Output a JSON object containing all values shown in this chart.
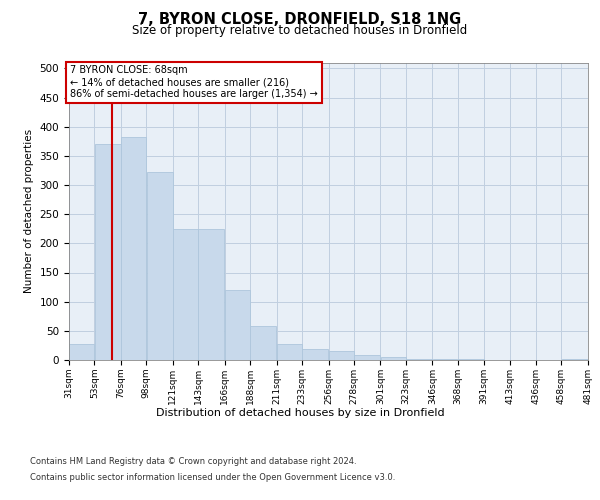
{
  "title": "7, BYRON CLOSE, DRONFIELD, S18 1NG",
  "subtitle": "Size of property relative to detached houses in Dronfield",
  "xlabel": "Distribution of detached houses by size in Dronfield",
  "ylabel": "Number of detached properties",
  "footer_line1": "Contains HM Land Registry data © Crown copyright and database right 2024.",
  "footer_line2": "Contains public sector information licensed under the Open Government Licence v3.0.",
  "bar_color": "#c8d9eb",
  "bar_edge_color": "#aec6dc",
  "grid_color": "#c0cfe0",
  "background_color": "#e8eff7",
  "vline_color": "#cc0000",
  "property_size": 68,
  "annotation_text": "7 BYRON CLOSE: 68sqm\n← 14% of detached houses are smaller (216)\n86% of semi-detached houses are larger (1,354) →",
  "bin_edges": [
    31,
    53,
    76,
    98,
    121,
    143,
    166,
    188,
    211,
    233,
    256,
    278,
    301,
    323,
    346,
    368,
    391,
    413,
    436,
    458,
    481
  ],
  "bin_labels": [
    "31sqm",
    "53sqm",
    "76sqm",
    "98sqm",
    "121sqm",
    "143sqm",
    "166sqm",
    "188sqm",
    "211sqm",
    "233sqm",
    "256sqm",
    "278sqm",
    "301sqm",
    "323sqm",
    "346sqm",
    "368sqm",
    "391sqm",
    "413sqm",
    "436sqm",
    "458sqm",
    "481sqm"
  ],
  "bar_heights": [
    28,
    370,
    383,
    323,
    225,
    224,
    120,
    58,
    28,
    19,
    15,
    8,
    5,
    2,
    1,
    1,
    0,
    0,
    0,
    1
  ],
  "ylim": [
    0,
    510
  ],
  "yticks": [
    0,
    50,
    100,
    150,
    200,
    250,
    300,
    350,
    400,
    450,
    500
  ]
}
